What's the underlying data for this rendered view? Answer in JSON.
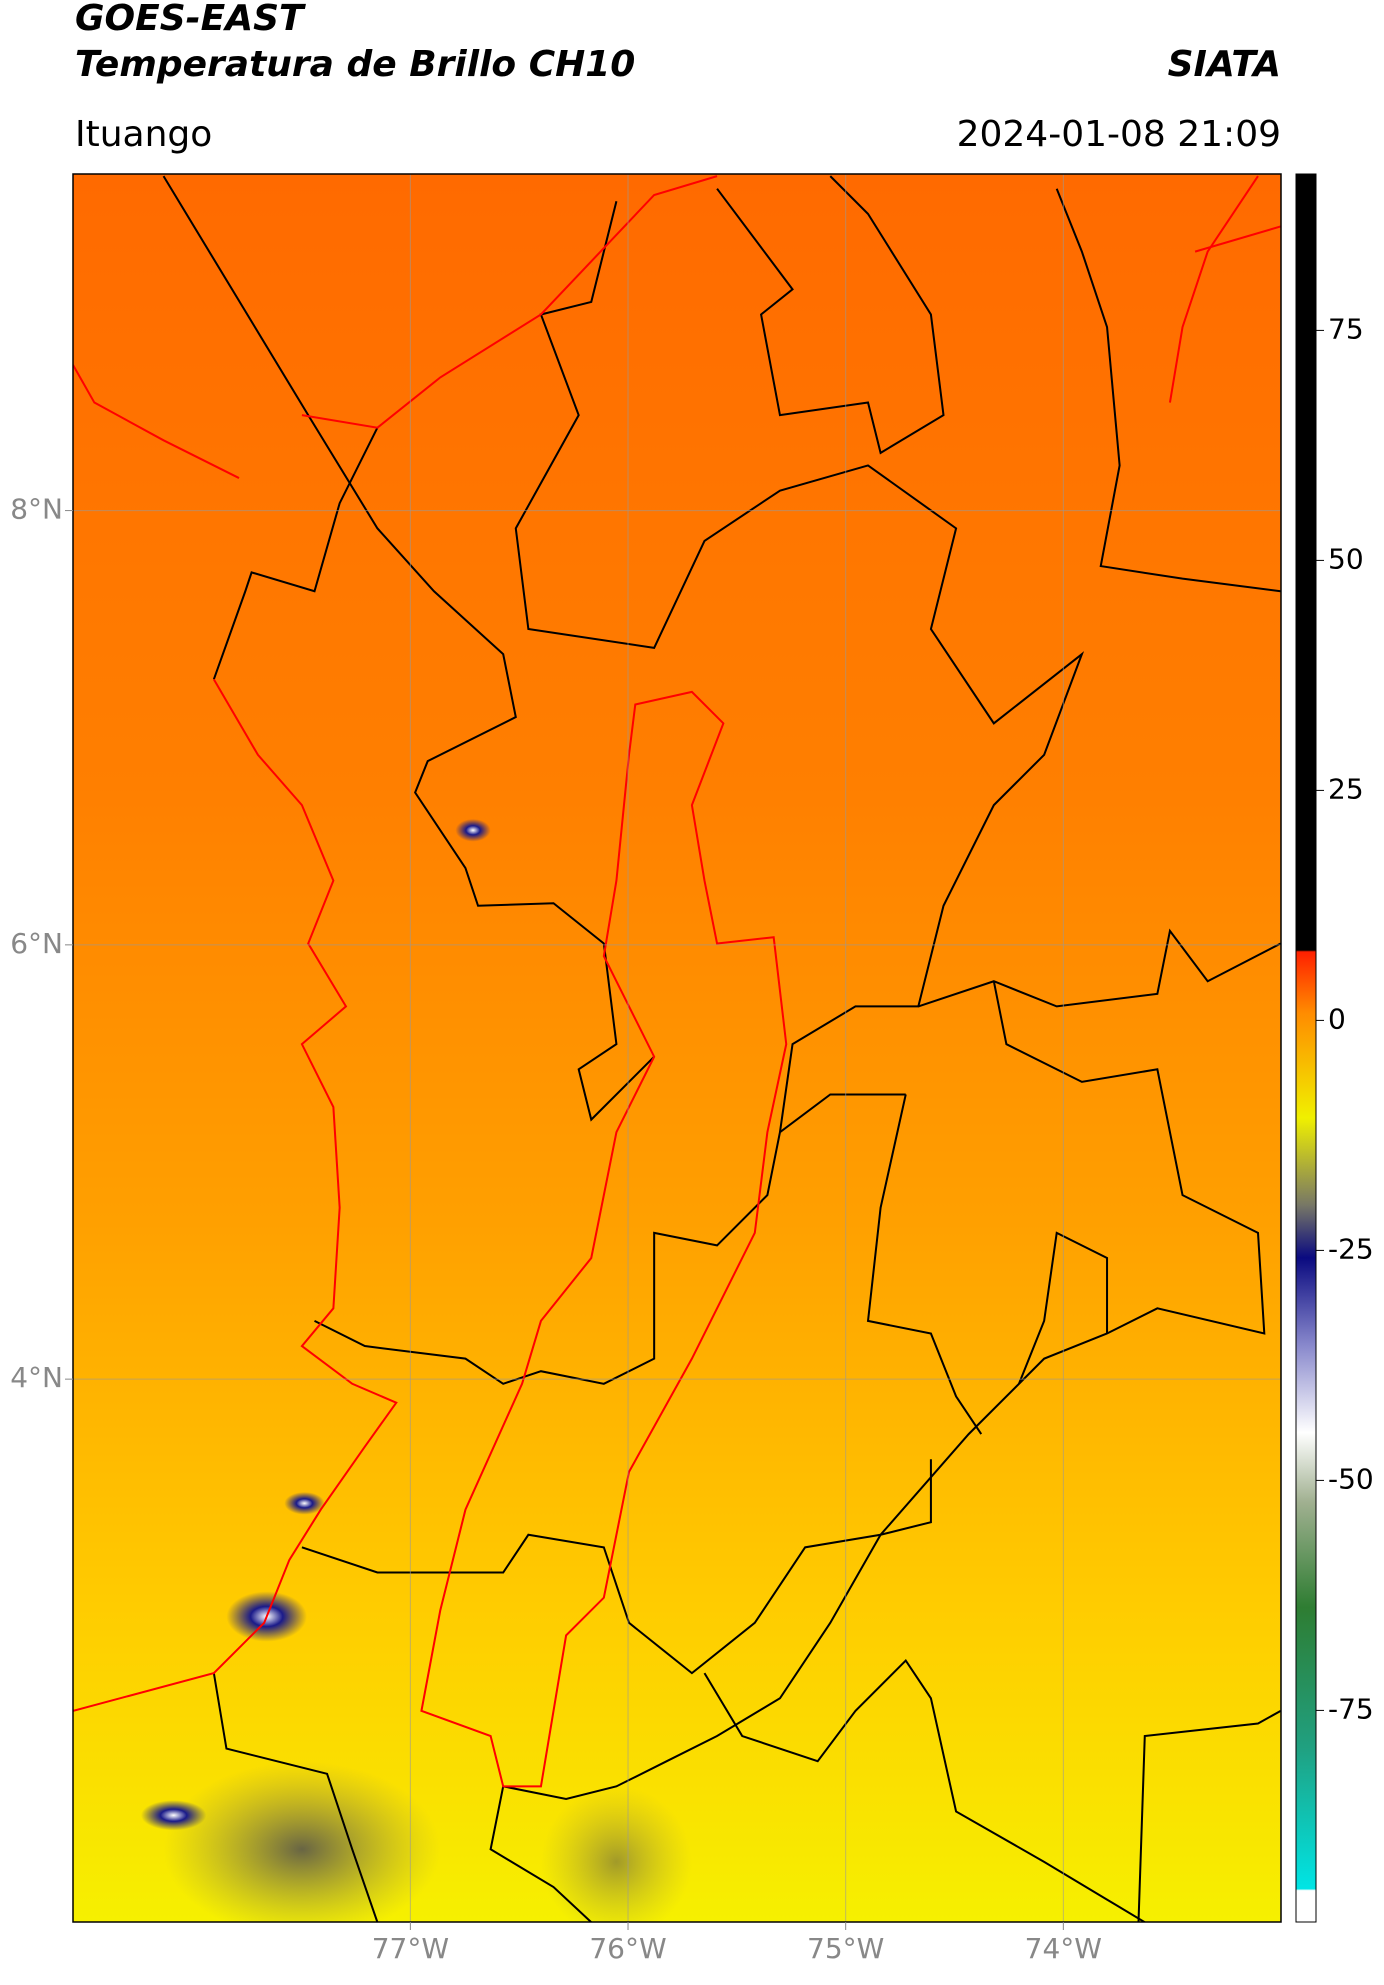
{
  "header": {
    "title": "GOES-EAST",
    "subtitle": "Temperatura de Brillo CH10",
    "brand": "SIATA",
    "location": "Ituango",
    "datetime": "2024-01-08 21:09"
  },
  "map": {
    "xlim": [
      -78.55,
      -73.0
    ],
    "ylim": [
      1.5,
      9.55
    ],
    "xticks": [
      {
        "value": -77,
        "label": "77°W"
      },
      {
        "value": -76,
        "label": "76°W"
      },
      {
        "value": -75,
        "label": "75°W"
      },
      {
        "value": -74,
        "label": "74°W"
      }
    ],
    "yticks": [
      {
        "value": 8,
        "label": "8°N"
      },
      {
        "value": 6,
        "label": "6°N"
      },
      {
        "value": 4,
        "label": "4°N"
      }
    ],
    "grid": true
  },
  "colorbar": {
    "lim": [
      -98,
      92
    ],
    "ticks": [
      75,
      50,
      25,
      0,
      -25,
      -50,
      -75
    ]
  }
}
